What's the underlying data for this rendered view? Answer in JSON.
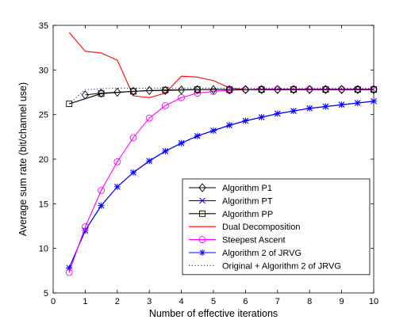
{
  "chart_data": {
    "type": "line",
    "xlabel": "Number of effective iterations",
    "ylabel": "Average sum rate (bit/channel use)",
    "xlim": [
      0,
      10
    ],
    "ylim": [
      5,
      35
    ],
    "xticks": [
      0,
      1,
      2,
      3,
      4,
      5,
      6,
      7,
      8,
      9,
      10
    ],
    "yticks": [
      5,
      10,
      15,
      20,
      25,
      30,
      35
    ],
    "grid": false,
    "legend_position": "lower-right",
    "series": [
      {
        "name": "Algorithm P1",
        "color": "#000000",
        "line_style": "solid",
        "marker": "diamond",
        "x": [
          1,
          1.5,
          2,
          2.5,
          3,
          3.5,
          4,
          4.5,
          5,
          5.5,
          6,
          6.5,
          7,
          7.5,
          8,
          8.5,
          9,
          9.5,
          10
        ],
        "y": [
          27.2,
          27.4,
          27.5,
          27.6,
          27.7,
          27.7,
          27.75,
          27.8,
          27.8,
          27.8,
          27.8,
          27.8,
          27.8,
          27.8,
          27.8,
          27.8,
          27.8,
          27.8,
          27.8
        ]
      },
      {
        "name": "Algorithm PT",
        "color": "#0000ff",
        "line_style": "solid",
        "marker": "x",
        "x": [
          0.5,
          1,
          1.5,
          2,
          2.5,
          3,
          3.5,
          4,
          4.5,
          5,
          5.5,
          6,
          6.5,
          7,
          7.5,
          8,
          8.5,
          9,
          9.5,
          10
        ],
        "y": [
          7.8,
          12.0,
          14.8,
          16.9,
          18.5,
          19.8,
          20.9,
          21.8,
          22.6,
          23.2,
          23.8,
          24.3,
          24.7,
          25.1,
          25.4,
          25.7,
          25.9,
          26.1,
          26.3,
          26.5
        ]
      },
      {
        "name": "Algorithm PP",
        "color": "#000000",
        "line_style": "solid",
        "marker": "square",
        "x": [
          0.5,
          1.5,
          2.5,
          3.5,
          4.5,
          5.5,
          6.5,
          7.5,
          8.5,
          9.5,
          10
        ],
        "y": [
          26.2,
          27.35,
          27.6,
          27.75,
          27.8,
          27.8,
          27.8,
          27.8,
          27.8,
          27.8,
          27.8
        ]
      },
      {
        "name": "Dual Decomposition",
        "color": "#ff0000",
        "line_style": "solid",
        "marker": "none",
        "x": [
          0.5,
          1,
          1.5,
          2,
          2.5,
          3,
          3.5,
          4,
          4.5,
          5,
          5.5,
          6,
          6.5,
          7,
          7.5,
          8,
          8.5,
          9,
          9.5,
          10
        ],
        "y": [
          34.2,
          32.1,
          31.9,
          31.1,
          27.1,
          26.9,
          27.4,
          29.3,
          29.2,
          28.8,
          28.0,
          27.8,
          27.8,
          27.8,
          27.8,
          27.8,
          27.8,
          27.8,
          27.8,
          27.8
        ]
      },
      {
        "name": "Steepest Ascent",
        "color": "#ff00ff",
        "line_style": "solid",
        "marker": "circle",
        "x": [
          0.5,
          1,
          1.5,
          2,
          2.5,
          3,
          3.5,
          4,
          4.5,
          5,
          5.5,
          6,
          6.5,
          7,
          7.5,
          8,
          8.5,
          9,
          9.5,
          10
        ],
        "y": [
          7.3,
          12.4,
          16.5,
          19.7,
          22.4,
          24.6,
          26.0,
          26.9,
          27.4,
          27.6,
          27.7,
          27.8,
          27.85,
          27.85,
          27.85,
          27.85,
          27.85,
          27.85,
          27.85,
          27.85
        ]
      },
      {
        "name": "Algorithm 2 of JRVG",
        "color": "#0000ff",
        "line_style": "solid",
        "marker": "star",
        "x": [
          0.5,
          1,
          1.5,
          2,
          2.5,
          3,
          3.5,
          4,
          4.5,
          5,
          5.5,
          6,
          6.5,
          7,
          7.5,
          8,
          8.5,
          9,
          9.5,
          10
        ],
        "y": [
          7.8,
          12.0,
          14.8,
          16.9,
          18.5,
          19.8,
          20.9,
          21.8,
          22.6,
          23.2,
          23.8,
          24.3,
          24.7,
          25.1,
          25.4,
          25.7,
          25.9,
          26.1,
          26.3,
          26.5
        ]
      },
      {
        "name": "Original + Algorithm 2 of JRVG",
        "color": "#3333aa",
        "line_style": "dotted",
        "marker": "none",
        "x": [
          0.5,
          1,
          1.5,
          2,
          2.5,
          3,
          3.5,
          4,
          4.5,
          5,
          5.5,
          6,
          6.5,
          7,
          7.5,
          8,
          8.5,
          9,
          9.5,
          10
        ],
        "y": [
          26.2,
          27.8,
          27.9,
          27.95,
          27.95,
          27.95,
          27.95,
          27.95,
          27.95,
          27.95,
          27.95,
          27.95,
          27.95,
          27.95,
          27.95,
          27.95,
          27.95,
          27.95,
          27.95,
          27.95
        ]
      }
    ]
  }
}
